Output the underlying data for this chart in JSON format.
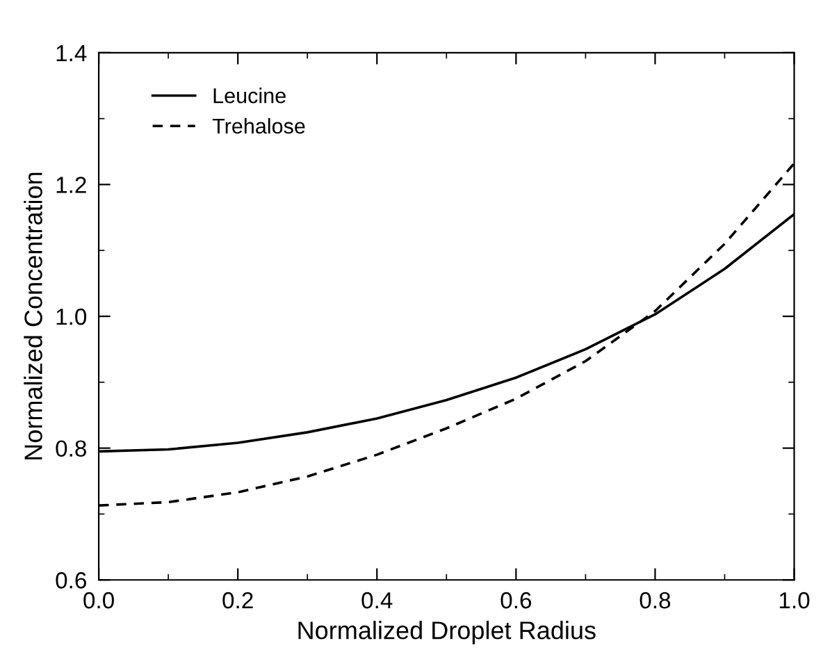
{
  "chart_data": {
    "type": "line",
    "xlabel": "Normalized Droplet Radius",
    "ylabel": "Normalized Concentration",
    "x": [
      0.0,
      0.1,
      0.2,
      0.3,
      0.4,
      0.5,
      0.6,
      0.7,
      0.8,
      0.9,
      1.0
    ],
    "series": [
      {
        "name": "Leucine",
        "color": "#000000",
        "line_style": "solid",
        "values": [
          0.795,
          0.798,
          0.808,
          0.824,
          0.845,
          0.873,
          0.907,
          0.95,
          1.003,
          1.072,
          1.155
        ]
      },
      {
        "name": "Trehalose",
        "color": "#000000",
        "line_style": "dashed",
        "values": [
          0.713,
          0.718,
          0.733,
          0.757,
          0.79,
          0.83,
          0.875,
          0.932,
          1.008,
          1.11,
          1.232
        ]
      }
    ],
    "xlim": [
      0.0,
      1.0
    ],
    "ylim": [
      0.6,
      1.4
    ],
    "xticks": [
      {
        "value": 0.0,
        "label": "0.0"
      },
      {
        "value": 0.1,
        "label": null
      },
      {
        "value": 0.2,
        "label": "0.2"
      },
      {
        "value": 0.3,
        "label": null
      },
      {
        "value": 0.4,
        "label": "0.4"
      },
      {
        "value": 0.5,
        "label": null
      },
      {
        "value": 0.6,
        "label": "0.6"
      },
      {
        "value": 0.7,
        "label": null
      },
      {
        "value": 0.8,
        "label": "0.8"
      },
      {
        "value": 0.9,
        "label": null
      },
      {
        "value": 1.0,
        "label": "1.0"
      }
    ],
    "yticks": [
      {
        "value": 0.6,
        "label": "0.6"
      },
      {
        "value": 0.7,
        "label": null
      },
      {
        "value": 0.8,
        "label": "0.8"
      },
      {
        "value": 0.9,
        "label": null
      },
      {
        "value": 1.0,
        "label": "1.0"
      },
      {
        "value": 1.1,
        "label": null
      },
      {
        "value": 1.2,
        "label": "1.2"
      },
      {
        "value": 1.3,
        "label": null
      },
      {
        "value": 1.4,
        "label": "1.4"
      }
    ],
    "grid": false,
    "legend": "top left"
  }
}
